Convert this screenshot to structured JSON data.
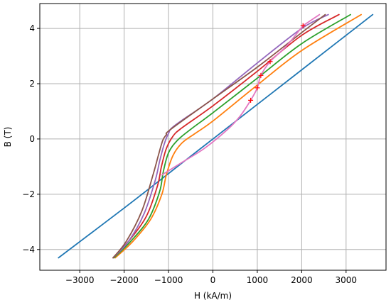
{
  "chart_data": {
    "type": "line",
    "title": "",
    "xlabel": "H (kA/m)",
    "ylabel": "B (T)",
    "xlim": [
      -3900,
      3900
    ],
    "ylim": [
      -4.75,
      4.9
    ],
    "xticks": [
      -3000,
      -2000,
      -1000,
      0,
      1000,
      2000,
      3000
    ],
    "xtick_labels": [
      "−3000",
      "−2000",
      "−1000",
      "0",
      "1000",
      "2000",
      "3000"
    ],
    "yticks": [
      -4,
      -2,
      0,
      2,
      4
    ],
    "ytick_labels": [
      "−4",
      "−2",
      "0",
      "2",
      "4"
    ],
    "grid": true,
    "legend": "none",
    "series": [
      {
        "color": "#1f77b4",
        "points": [
          [
            -3480,
            -4.3
          ],
          [
            -2000,
            -2.5
          ],
          [
            -1000,
            -1.25
          ],
          [
            0,
            0.0
          ],
          [
            1000,
            1.25
          ],
          [
            2000,
            2.5
          ],
          [
            3600,
            4.5
          ]
        ]
      },
      {
        "color": "#ff7f0e",
        "points": [
          [
            -2200,
            -4.3
          ],
          [
            -1800,
            -3.7
          ],
          [
            -1400,
            -2.9
          ],
          [
            -1150,
            -2.0
          ],
          [
            -1050,
            -1.3
          ],
          [
            -900,
            -0.6
          ],
          [
            -700,
            -0.15
          ],
          [
            -400,
            0.2
          ],
          [
            0,
            0.65
          ],
          [
            1000,
            1.95
          ],
          [
            2000,
            3.2
          ],
          [
            3340,
            4.5
          ]
        ]
      },
      {
        "color": "#2ca02c",
        "points": [
          [
            -2230,
            -4.3
          ],
          [
            -1850,
            -3.7
          ],
          [
            -1450,
            -2.9
          ],
          [
            -1200,
            -1.9
          ],
          [
            -1120,
            -1.2
          ],
          [
            -1000,
            -0.5
          ],
          [
            -800,
            -0.05
          ],
          [
            -500,
            0.35
          ],
          [
            0,
            0.95
          ],
          [
            1000,
            2.2
          ],
          [
            2000,
            3.45
          ],
          [
            3100,
            4.5
          ]
        ]
      },
      {
        "color": "#d62728",
        "points": [
          [
            -2250,
            -4.3
          ],
          [
            -1900,
            -3.7
          ],
          [
            -1500,
            -2.8
          ],
          [
            -1250,
            -1.7
          ],
          [
            -1160,
            -1.0
          ],
          [
            -1050,
            -0.35
          ],
          [
            -900,
            0.1
          ],
          [
            -700,
            0.4
          ],
          [
            0,
            1.2
          ],
          [
            1000,
            2.45
          ],
          [
            2000,
            3.75
          ],
          [
            2840,
            4.5
          ]
        ]
      },
      {
        "color": "#9467bd",
        "points": [
          [
            -2250,
            -4.3
          ],
          [
            -1900,
            -3.7
          ],
          [
            -1550,
            -2.7
          ],
          [
            -1300,
            -1.5
          ],
          [
            -1200,
            -0.8
          ],
          [
            -1100,
            -0.2
          ],
          [
            -1000,
            0.2
          ],
          [
            -850,
            0.5
          ],
          [
            0,
            1.45
          ],
          [
            1000,
            2.75
          ],
          [
            2000,
            4.0
          ],
          [
            2600,
            4.5
          ]
        ]
      },
      {
        "color": "#8c564b",
        "points": [
          [
            -2250,
            -4.3
          ],
          [
            -1950,
            -3.7
          ],
          [
            -1600,
            -2.6
          ],
          [
            -1350,
            -1.3
          ],
          [
            -1230,
            -0.6
          ],
          [
            -1130,
            -0.05
          ],
          [
            -1050,
            0.15
          ],
          [
            -950,
            0.35
          ],
          [
            0,
            1.45
          ],
          [
            1000,
            2.6
          ],
          [
            2000,
            3.85
          ],
          [
            2530,
            4.5
          ]
        ]
      },
      {
        "color": "#e377c2",
        "points": [
          [
            2030,
            4.1
          ],
          [
            1650,
            3.35
          ],
          [
            1290,
            2.8
          ],
          [
            1080,
            2.3
          ],
          [
            1000,
            1.85
          ],
          [
            850,
            1.4
          ],
          [
            600,
            0.8
          ],
          [
            300,
            0.3
          ],
          [
            -200,
            -0.35
          ],
          [
            -700,
            -0.85
          ],
          [
            -1000,
            -1.15
          ],
          [
            -1150,
            -1.3
          ]
        ]
      },
      {
        "color": "#e377c2",
        "points": [
          [
            2030,
            4.1
          ],
          [
            2400,
            4.5
          ]
        ]
      }
    ],
    "markers": {
      "color": "#ff0000",
      "shape": "plus",
      "points": [
        [
          2030,
          4.1
        ],
        [
          1290,
          2.8
        ],
        [
          1080,
          2.3
        ],
        [
          1000,
          1.85
        ],
        [
          850,
          1.4
        ]
      ]
    }
  }
}
